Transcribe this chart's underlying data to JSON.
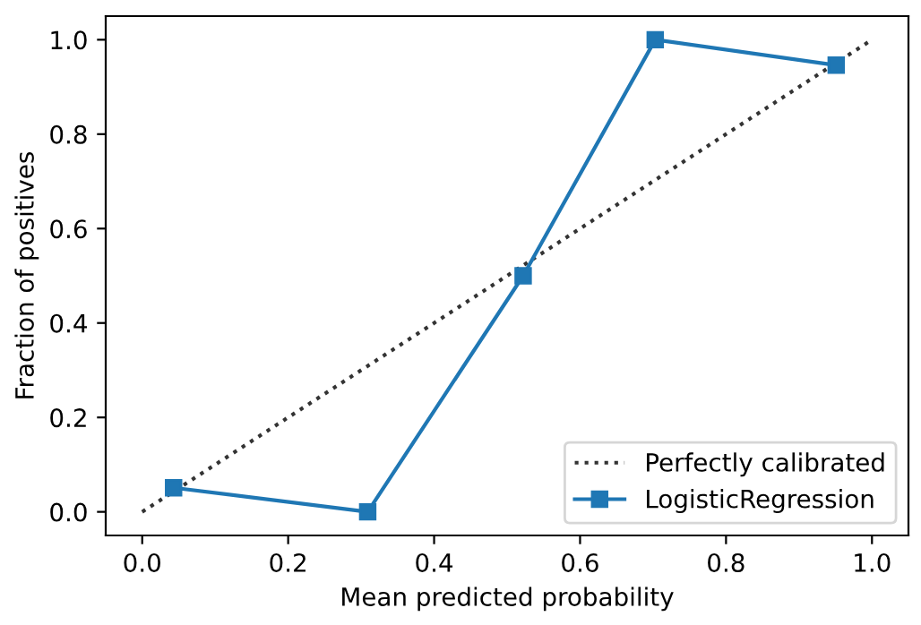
{
  "chart_data": {
    "type": "line",
    "xlabel": "Mean predicted probability",
    "ylabel": "Fraction of positives",
    "xlim": [
      -0.05,
      1.05
    ],
    "ylim": [
      -0.05,
      1.05
    ],
    "xticks": [
      {
        "value": 0,
        "label": "0.0"
      },
      0.2,
      0.4,
      0.6,
      0.8,
      {
        "value": 1,
        "label": "1.0"
      }
    ],
    "yticks": [
      {
        "value": 0,
        "label": "0.0"
      },
      0.2,
      0.4,
      0.6,
      0.8,
      {
        "value": 1,
        "label": "1.0"
      }
    ],
    "series": [
      {
        "name": "Perfectly calibrated",
        "color": "#000000",
        "x": [
          0,
          1
        ],
        "values": [
          0,
          1
        ],
        "line_style": "dotted",
        "marker": "none"
      },
      {
        "name": "LogisticRegression",
        "color": "#1f77b4",
        "x": [
          0.043,
          0.309,
          0.522,
          0.703,
          0.951
        ],
        "values": [
          0.051,
          0.0,
          0.5,
          1.0,
          0.946
        ],
        "line_style": "solid",
        "marker": "square"
      }
    ],
    "grid": false,
    "legend": "bottom right"
  }
}
